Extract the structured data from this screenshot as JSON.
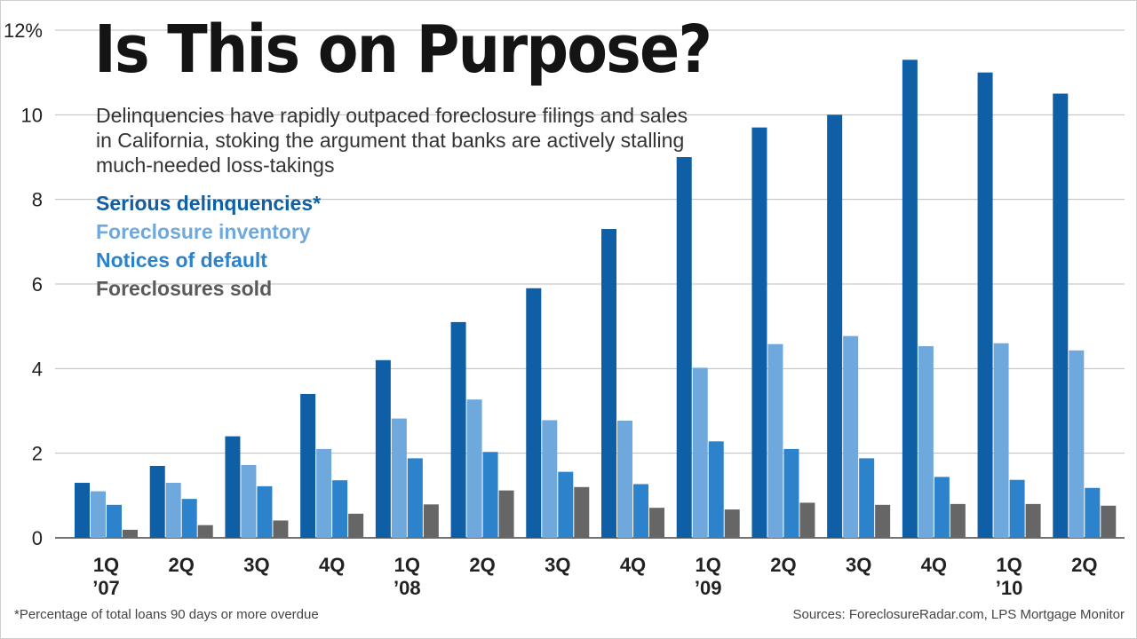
{
  "chart_data": {
    "type": "bar",
    "title": "Is This on Purpose?",
    "subtitle": "Delinquencies have rapidly outpaced foreclosure filings and sales in California, stoking the argument that banks are actively stalling much-needed loss-takings",
    "categories": [
      [
        "1Q",
        "’07"
      ],
      [
        "2Q",
        ""
      ],
      [
        "3Q",
        ""
      ],
      [
        "4Q",
        ""
      ],
      [
        "1Q",
        "’08"
      ],
      [
        "2Q",
        ""
      ],
      [
        "3Q",
        ""
      ],
      [
        "4Q",
        ""
      ],
      [
        "1Q",
        "’09"
      ],
      [
        "2Q",
        ""
      ],
      [
        "3Q",
        ""
      ],
      [
        "4Q",
        ""
      ],
      [
        "1Q",
        "’10"
      ],
      [
        "2Q",
        ""
      ]
    ],
    "series": [
      {
        "name": "Serious delinquencies*",
        "color": "#0e5fa6",
        "values": [
          1.3,
          1.7,
          2.4,
          3.4,
          4.2,
          5.1,
          5.9,
          7.3,
          9.0,
          9.7,
          10.0,
          11.3,
          11.0,
          10.5
        ]
      },
      {
        "name": "Foreclosure inventory",
        "color": "#6ea8dc",
        "values": [
          1.1,
          1.3,
          1.72,
          2.1,
          2.82,
          3.27,
          2.78,
          2.77,
          4.02,
          4.58,
          4.77,
          4.53,
          4.6,
          4.43
        ]
      },
      {
        "name": "Notices of default",
        "color": "#2c83cb",
        "values": [
          0.78,
          0.92,
          1.22,
          1.36,
          1.88,
          2.03,
          1.56,
          1.27,
          2.28,
          2.1,
          1.88,
          1.44,
          1.37,
          1.18
        ]
      },
      {
        "name": "Foreclosures sold",
        "color": "#666666",
        "values": [
          0.19,
          0.3,
          0.41,
          0.57,
          0.79,
          1.12,
          1.2,
          0.71,
          0.67,
          0.83,
          0.78,
          0.8,
          0.8,
          0.76
        ]
      }
    ],
    "y_ticks": [
      0,
      2,
      4,
      6,
      8,
      10
    ],
    "y_tick_labels": [
      "0",
      "2",
      "4",
      "6",
      "8",
      "10"
    ],
    "y_top_label": "12%",
    "ylim": [
      0,
      12
    ],
    "xlabel": "",
    "ylabel": "",
    "grid": true,
    "legend_position": "top-left",
    "footnote": "*Percentage of total loans 90 days or more overdue",
    "source": "Sources: ForeclosureRadar.com, LPS Mortgage Monitor"
  }
}
